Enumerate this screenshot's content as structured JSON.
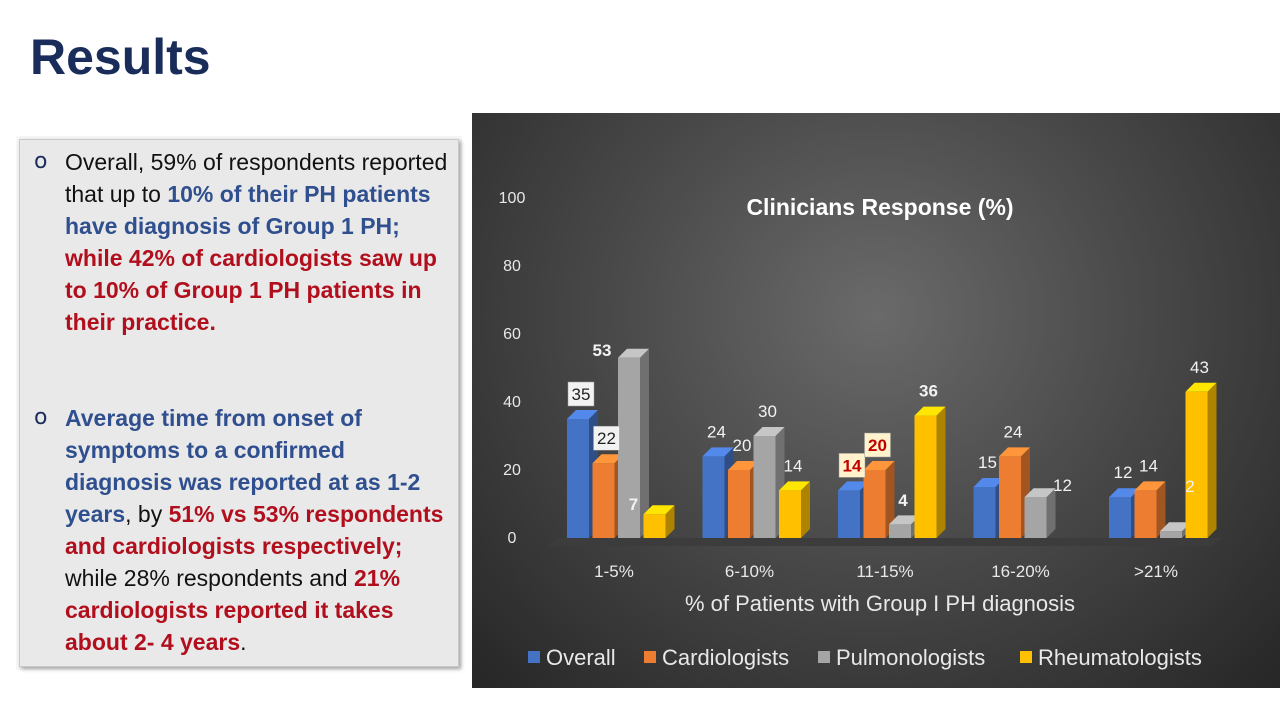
{
  "slide": {
    "title": "Results"
  },
  "bullets": [
    {
      "marker": "o",
      "segments": [
        {
          "text": "Overall, 59% of respondents reported that up to ",
          "style": "normal"
        },
        {
          "text": "10% of their PH patients have diagnosis of Group 1 PH;",
          "style": "blue"
        },
        {
          "text": " while 42% of cardiologists saw up to 10% of Group 1 PH patients in their practice.",
          "style": "red"
        }
      ]
    },
    {
      "marker": "o",
      "segments": [
        {
          "text": "Average time from onset of symptoms to a confirmed diagnosis was reported at as 1-2 years",
          "style": "blue"
        },
        {
          "text": ", by ",
          "style": "normal"
        },
        {
          "text": "51% vs 53% respondents and cardiologists respectively;",
          "style": "red"
        },
        {
          "text": " while 28% respondents and ",
          "style": "normal"
        },
        {
          "text": "21% cardiologists reported it takes about 2- 4 years",
          "style": "red"
        },
        {
          "text": ".",
          "style": "normal"
        }
      ]
    }
  ],
  "chart_data": {
    "type": "bar",
    "title": "Clinicians  Response (%)",
    "xlabel": "% of Patients with Group I PH diagnosis",
    "ylabel": "",
    "ylim": [
      0,
      100
    ],
    "yticks": [
      "0",
      "20",
      "40",
      "60",
      "80",
      "100"
    ],
    "categories": [
      "1-5%",
      "6-10%",
      "11-15%",
      "16-20%",
      ">21%"
    ],
    "series": [
      {
        "name": "Overall",
        "color": "#4472c4",
        "values": [
          35,
          24,
          14,
          15,
          12
        ]
      },
      {
        "name": "Cardiologists",
        "color": "#ed7d31",
        "values": [
          22,
          20,
          20,
          24,
          14
        ]
      },
      {
        "name": "Pulmonologists",
        "color": "#a5a5a5",
        "values": [
          53,
          30,
          4,
          12,
          2
        ]
      },
      {
        "name": "Rheumatologists",
        "color": "#ffc000",
        "values": [
          7,
          14,
          36,
          0,
          43
        ]
      }
    ],
    "data_labels": [
      [
        "35",
        "24",
        "14",
        "15",
        "12"
      ],
      [
        "22",
        "20",
        "20",
        "24",
        "14"
      ],
      [
        "53",
        "30",
        "4",
        "12",
        "2"
      ],
      [
        "7",
        "14",
        "36",
        "",
        "43"
      ]
    ],
    "legend_position": "bottom",
    "grid": false
  }
}
